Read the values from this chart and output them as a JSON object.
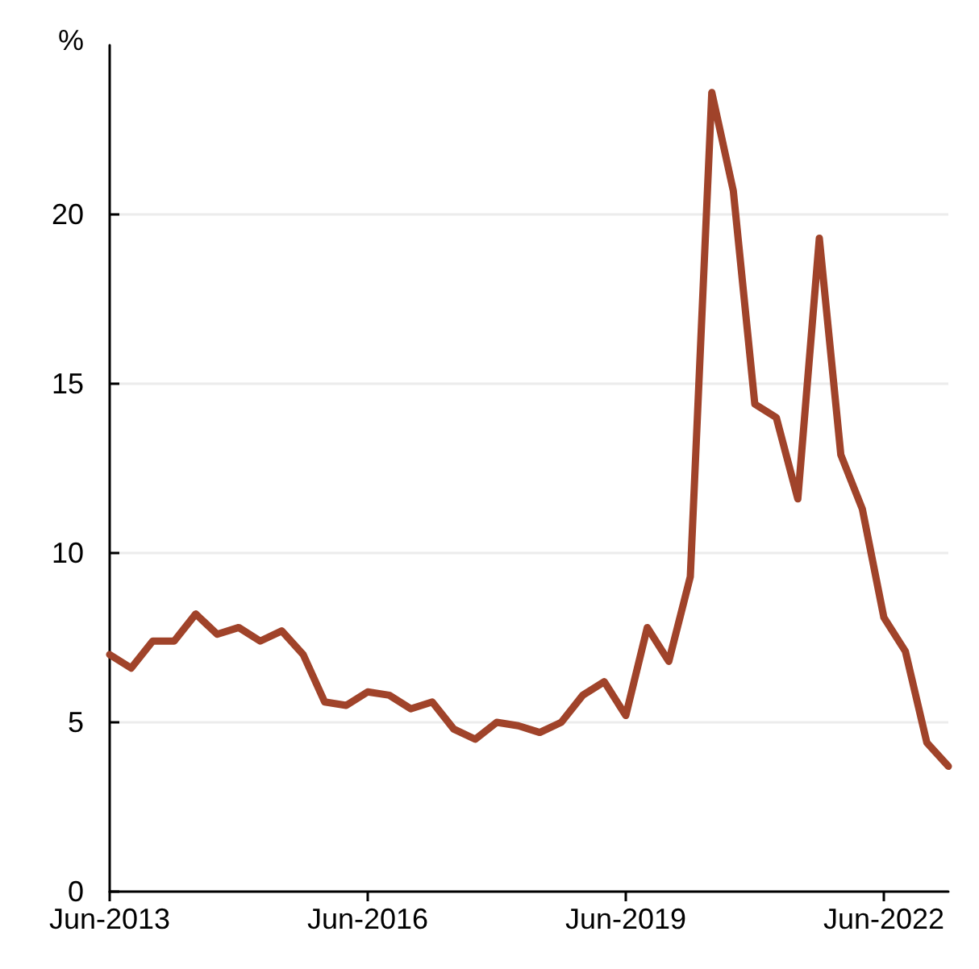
{
  "chart_data": {
    "type": "line",
    "ylabel": "%",
    "categories": [
      "Jun-2013",
      null,
      null,
      null,
      null,
      null,
      null,
      null,
      null,
      null,
      null,
      null,
      "Jun-2016",
      null,
      null,
      null,
      null,
      null,
      null,
      null,
      null,
      null,
      null,
      null,
      "Jun-2019",
      null,
      null,
      null,
      null,
      null,
      null,
      null,
      null,
      null,
      null,
      null,
      "Jun-2022",
      null,
      null,
      null
    ],
    "series": [
      {
        "color": "#a0432a",
        "values": [
          7.0,
          6.6,
          7.4,
          7.4,
          8.2,
          7.6,
          7.8,
          7.4,
          7.7,
          7.0,
          5.6,
          5.5,
          5.9,
          5.8,
          5.4,
          5.6,
          4.8,
          4.5,
          5.0,
          4.9,
          4.7,
          5.0,
          5.8,
          6.2,
          5.2,
          7.8,
          6.8,
          9.3,
          23.6,
          20.7,
          14.4,
          14.0,
          11.6,
          19.3,
          12.9,
          11.3,
          8.1,
          7.1,
          4.4,
          3.7
        ]
      }
    ],
    "ylim": [
      0,
      25
    ],
    "yticks": [
      0,
      5,
      10,
      15,
      20
    ],
    "grid": "y",
    "marker": "none",
    "line_style": "solid"
  }
}
